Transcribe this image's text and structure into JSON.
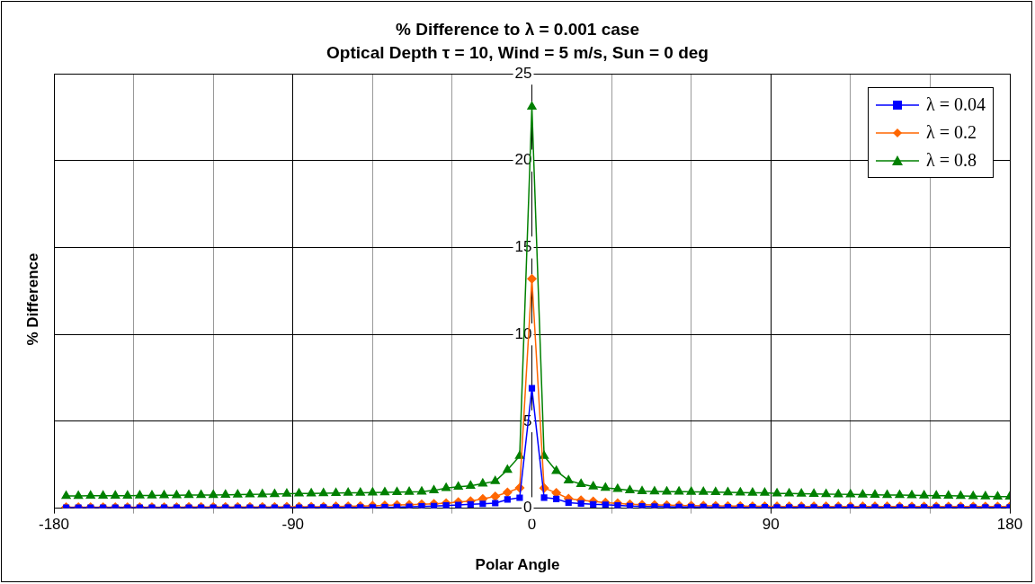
{
  "chart_data": {
    "type": "line",
    "title": "% Difference to λ = 0.001 case",
    "subtitle": "Optical Depth τ = 10, Wind = 5 m/s, Sun = 0 deg",
    "xlabel": "Polar Angle",
    "ylabel": "% Difference",
    "x": [
      -175.4,
      -170.8,
      -166.2,
      -161.5,
      -156.9,
      -152.3,
      -147.7,
      -143.1,
      -138.5,
      -133.8,
      -129.2,
      -124.6,
      -120,
      -115.4,
      -110.8,
      -106.2,
      -101.5,
      -96.9,
      -92.3,
      -87.7,
      -83.1,
      -78.5,
      -73.8,
      -69.2,
      -64.6,
      -60,
      -55.4,
      -50.8,
      -46.2,
      -41.5,
      -36.9,
      -32.3,
      -27.7,
      -23.1,
      -18.5,
      -13.8,
      -9.2,
      -4.6,
      0,
      4.6,
      9.2,
      13.8,
      18.5,
      23.1,
      27.7,
      32.3,
      36.9,
      41.5,
      46.2,
      50.8,
      55.4,
      60,
      64.6,
      69.2,
      73.8,
      78.5,
      83.1,
      87.7,
      92.3,
      96.9,
      101.5,
      106.2,
      110.8,
      115.4,
      120,
      124.6,
      129.2,
      133.8,
      138.5,
      143.1,
      147.7,
      152.3,
      156.9,
      161.5,
      166.2,
      170.8,
      175.4,
      180
    ],
    "series": [
      {
        "name": "λ = 0.04",
        "color": "#0000ff",
        "marker": "square",
        "values": [
          0.03,
          0.03,
          0.03,
          0.03,
          0.03,
          0.03,
          0.03,
          0.03,
          0.03,
          0.03,
          0.03,
          0.03,
          0.03,
          0.03,
          0.03,
          0.03,
          0.03,
          0.03,
          0.03,
          0.03,
          0.04,
          0.04,
          0.04,
          0.04,
          0.04,
          0.04,
          0.05,
          0.06,
          0.08,
          0.1,
          0.12,
          0.15,
          0.18,
          0.22,
          0.25,
          0.29,
          0.5,
          0.6,
          6.9,
          0.61,
          0.53,
          0.32,
          0.27,
          0.22,
          0.2,
          0.16,
          0.12,
          0.1,
          0.09,
          0.08,
          0.07,
          0.07,
          0.06,
          0.06,
          0.05,
          0.05,
          0.05,
          0.05,
          0.04,
          0.04,
          0.04,
          0.04,
          0.04,
          0.04,
          0.04,
          0.04,
          0.04,
          0.04,
          0.04,
          0.04,
          0.04,
          0.04,
          0.04,
          0.04,
          0.04,
          0.04,
          0.04,
          0.04
        ]
      },
      {
        "name": "λ = 0.2",
        "color": "#ff6600",
        "marker": "diamond",
        "values": [
          0.06,
          0.06,
          0.06,
          0.06,
          0.06,
          0.06,
          0.06,
          0.06,
          0.06,
          0.06,
          0.07,
          0.07,
          0.07,
          0.07,
          0.07,
          0.07,
          0.07,
          0.07,
          0.08,
          0.08,
          0.08,
          0.08,
          0.1,
          0.11,
          0.12,
          0.14,
          0.16,
          0.18,
          0.2,
          0.22,
          0.25,
          0.29,
          0.35,
          0.4,
          0.53,
          0.68,
          0.91,
          1.17,
          13.2,
          1.16,
          0.88,
          0.55,
          0.46,
          0.39,
          0.32,
          0.28,
          0.22,
          0.2,
          0.18,
          0.17,
          0.16,
          0.15,
          0.14,
          0.13,
          0.12,
          0.12,
          0.11,
          0.11,
          0.1,
          0.1,
          0.1,
          0.1,
          0.1,
          0.1,
          0.1,
          0.1,
          0.1,
          0.1,
          0.09,
          0.09,
          0.09,
          0.09,
          0.09,
          0.09,
          0.09,
          0.09,
          0.09,
          0.09
        ]
      },
      {
        "name": "λ = 0.8",
        "color": "#008000",
        "marker": "triangle",
        "values": [
          0.7,
          0.7,
          0.71,
          0.71,
          0.72,
          0.72,
          0.73,
          0.73,
          0.74,
          0.74,
          0.75,
          0.76,
          0.76,
          0.77,
          0.78,
          0.79,
          0.8,
          0.81,
          0.83,
          0.84,
          0.85,
          0.86,
          0.87,
          0.88,
          0.89,
          0.9,
          0.91,
          0.92,
          0.93,
          0.95,
          1.02,
          1.16,
          1.23,
          1.29,
          1.41,
          1.55,
          2.2,
          3.0,
          23.1,
          3.0,
          2.14,
          1.6,
          1.39,
          1.25,
          1.17,
          1.1,
          1.02,
          0.97,
          0.96,
          0.95,
          0.95,
          0.94,
          0.93,
          0.92,
          0.91,
          0.9,
          0.89,
          0.88,
          0.85,
          0.84,
          0.83,
          0.82,
          0.81,
          0.8,
          0.79,
          0.78,
          0.77,
          0.76,
          0.75,
          0.74,
          0.73,
          0.72,
          0.71,
          0.7,
          0.69,
          0.68,
          0.67,
          0.66
        ]
      }
    ],
    "xlim": [
      -180,
      180
    ],
    "xticks": [
      -180,
      {
        "value": -150,
        "label": null
      },
      {
        "value": -120,
        "label": null
      },
      -90,
      {
        "value": -60,
        "label": null
      },
      {
        "value": -30,
        "label": null
      },
      0,
      {
        "value": 30,
        "label": null
      },
      {
        "value": 60,
        "label": null
      },
      90,
      {
        "value": 120,
        "label": null
      },
      {
        "value": 150,
        "label": null
      },
      180
    ],
    "ylim": [
      0,
      25
    ],
    "yticks": [
      0,
      5,
      10,
      15,
      20,
      25
    ],
    "grid": true,
    "legend": "top right",
    "line_style": "solid"
  }
}
